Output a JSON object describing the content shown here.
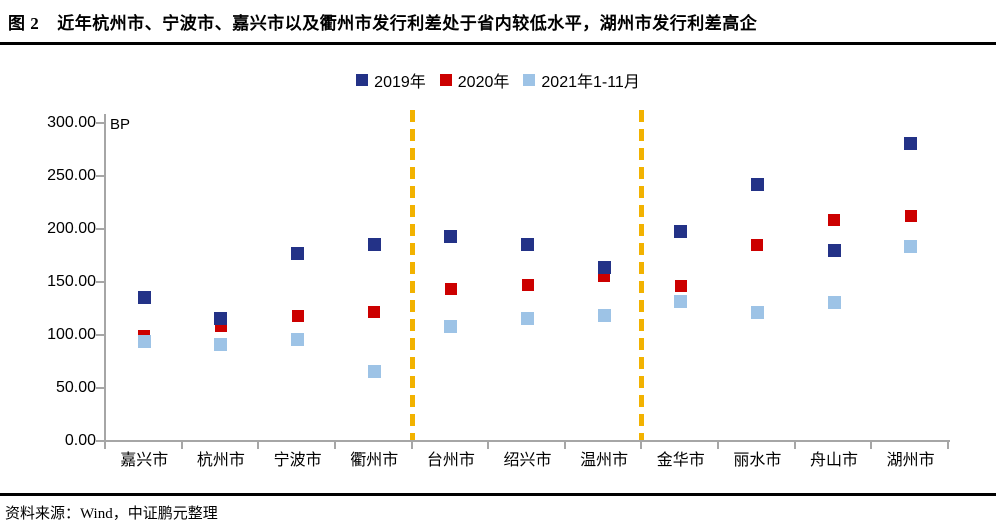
{
  "header": {
    "figure_label": "图 2",
    "title": "近年杭州市、宁波市、嘉兴市以及衢州市发行利差处于省内较低水平，湖州市发行利差高企"
  },
  "footer": {
    "source": "资料来源：Wind，中证鹏元整理"
  },
  "chart_data": {
    "type": "scatter",
    "title": "",
    "unit_label": "BP",
    "xlabel": "",
    "ylabel": "BP",
    "categories": [
      "嘉兴市",
      "杭州市",
      "宁波市",
      "衢州市",
      "台州市",
      "绍兴市",
      "温州市",
      "金华市",
      "丽水市",
      "舟山市",
      "湖州市"
    ],
    "series": [
      {
        "name": "2019年",
        "color": "#233287",
        "marker_size": 13,
        "z": 2,
        "values": [
          134,
          115,
          176,
          184,
          192,
          184,
          163,
          197,
          241,
          179,
          280
        ]
      },
      {
        "name": "2020年",
        "color": "#CC0000",
        "marker_size": 12,
        "z": 1,
        "values": [
          98,
          108,
          117,
          121,
          142,
          146,
          155,
          145,
          184,
          208,
          211
        ]
      },
      {
        "name": "2021年1-11月",
        "color": "#9DC3E6",
        "marker_size": 13,
        "z": 3,
        "values": [
          93,
          90,
          95,
          65,
          107,
          115,
          117,
          131,
          120,
          130,
          183
        ]
      }
    ],
    "y_axis": {
      "min": 0,
      "max": 300,
      "tick_step": 50,
      "tick_labels": [
        "0.00",
        "50.00",
        "100.00",
        "150.00",
        "200.00",
        "250.00",
        "300.00"
      ]
    },
    "separator_boundaries": [
      4,
      7
    ],
    "separator_color": "#F2B200",
    "axis_color": "#A6A6A6",
    "grid": false,
    "legend_position": "top"
  }
}
